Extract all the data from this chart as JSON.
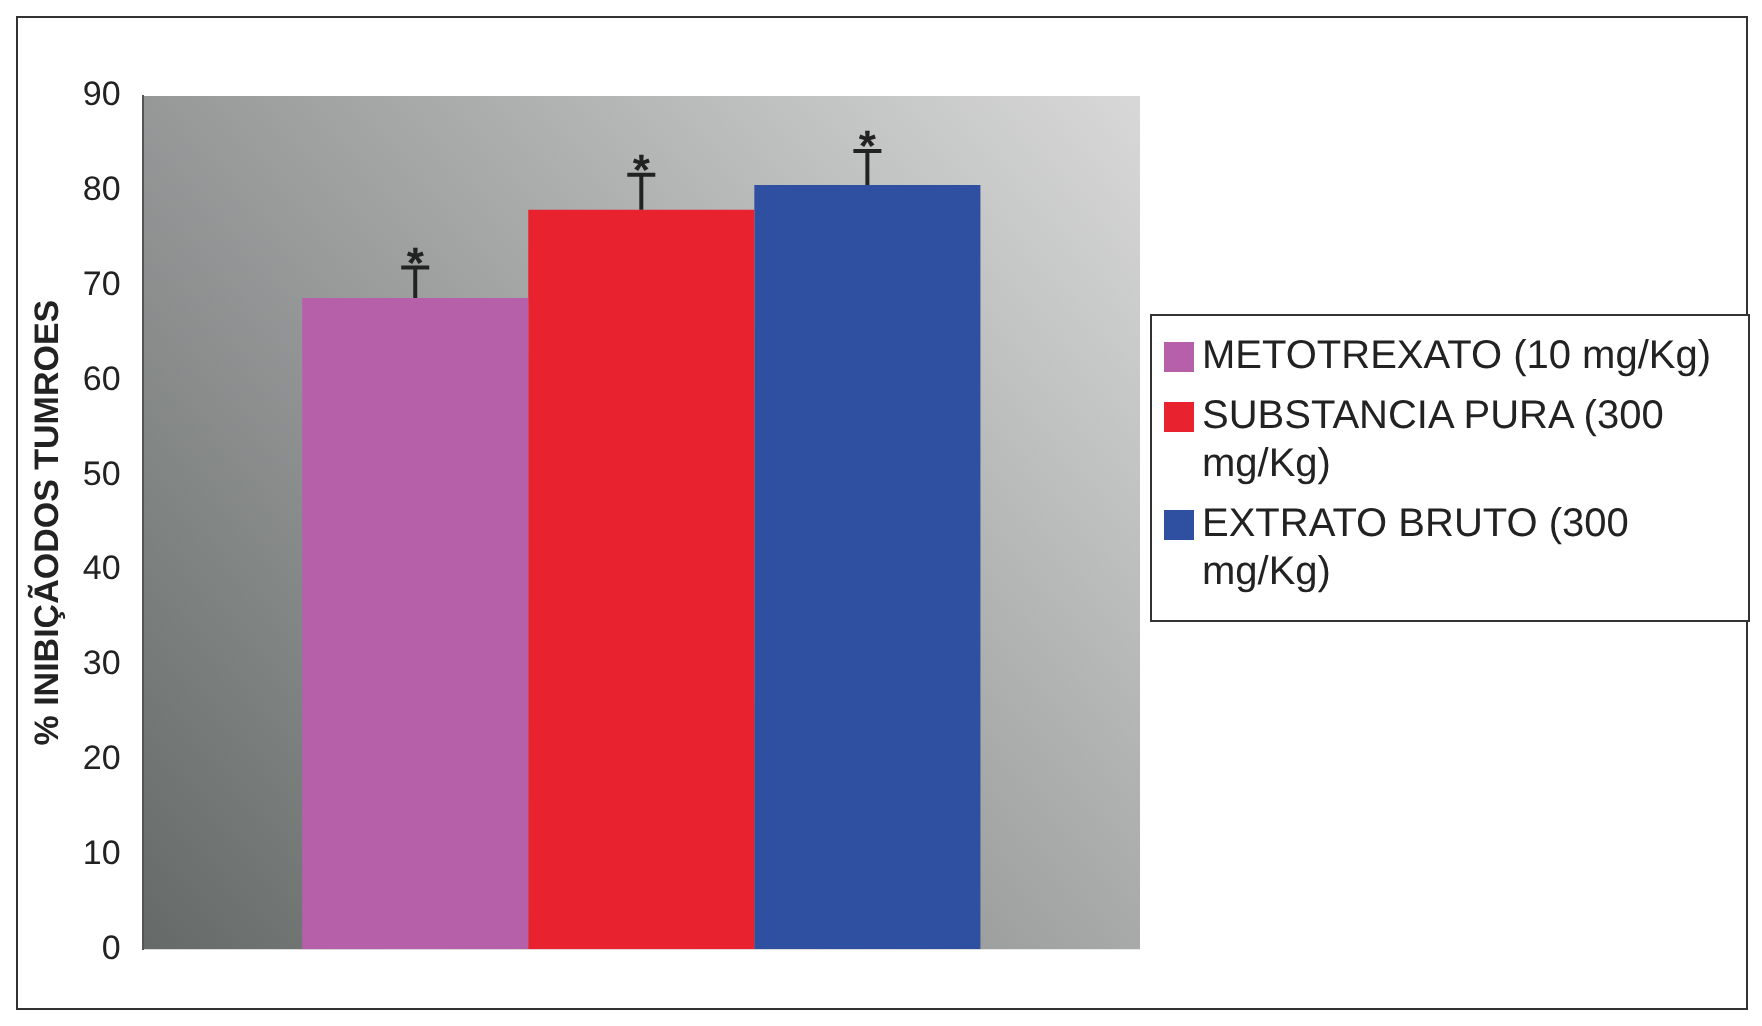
{
  "chart_data": {
    "type": "bar",
    "ylabel": "% INIBIÇÃODOS TUMROES",
    "categories": [
      null
    ],
    "series": [
      {
        "name": "METOTREXATO (10 mg/Kg)",
        "color": "#b560a8",
        "values": [
          68.7
        ],
        "errors": [
          3.2
        ]
      },
      {
        "name": "SUBSTANCIA PURA (300 mg/Kg)",
        "color": "#e8222e",
        "values": [
          78.0
        ],
        "errors": [
          3.7
        ]
      },
      {
        "name": "EXTRATO BRUTO (300 mg/Kg)",
        "color": "#2f4fa0",
        "values": [
          80.6
        ],
        "errors": [
          3.6
        ]
      }
    ],
    "ylim": [
      0,
      90
    ],
    "yticks": [
      0,
      10,
      20,
      30,
      40,
      50,
      60,
      70,
      80,
      90
    ],
    "grid": false,
    "legend": "right",
    "annotations": [
      "*",
      "*",
      "*"
    ]
  }
}
